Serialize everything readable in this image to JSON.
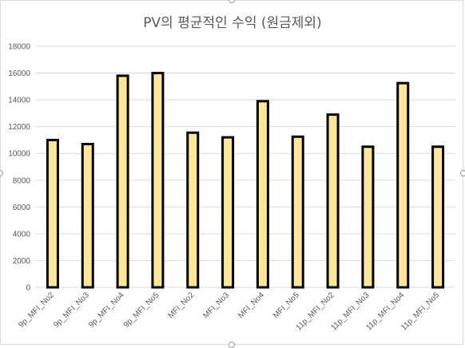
{
  "chart_data": {
    "type": "bar",
    "title": "PV의 평균적인 수익 (원금제외)",
    "categories": [
      "9p_MFI_No2",
      "9p_MFI_No3",
      "9p_MFI_No4",
      "9p_MFI_No5",
      "MFI_No2",
      "MFI_No3",
      "MFI_No4",
      "MFI_No5",
      "11p_MFI_No2",
      "11p_MFI_No3",
      "11p_MFI_No4",
      "11p_MFI_No5"
    ],
    "values": [
      11000,
      10700,
      15800,
      16000,
      11550,
      11200,
      13900,
      11250,
      12900,
      10500,
      15250,
      10500
    ],
    "y_ticks": [
      "0",
      "2000",
      "4000",
      "6000",
      "8000",
      "10000",
      "12000",
      "14000",
      "16000",
      "18000"
    ],
    "ylim": [
      0,
      18000
    ],
    "xlabel": "",
    "ylabel": "",
    "grid": true,
    "bar_fill": "#ffe699",
    "bar_edge": "#000000"
  }
}
